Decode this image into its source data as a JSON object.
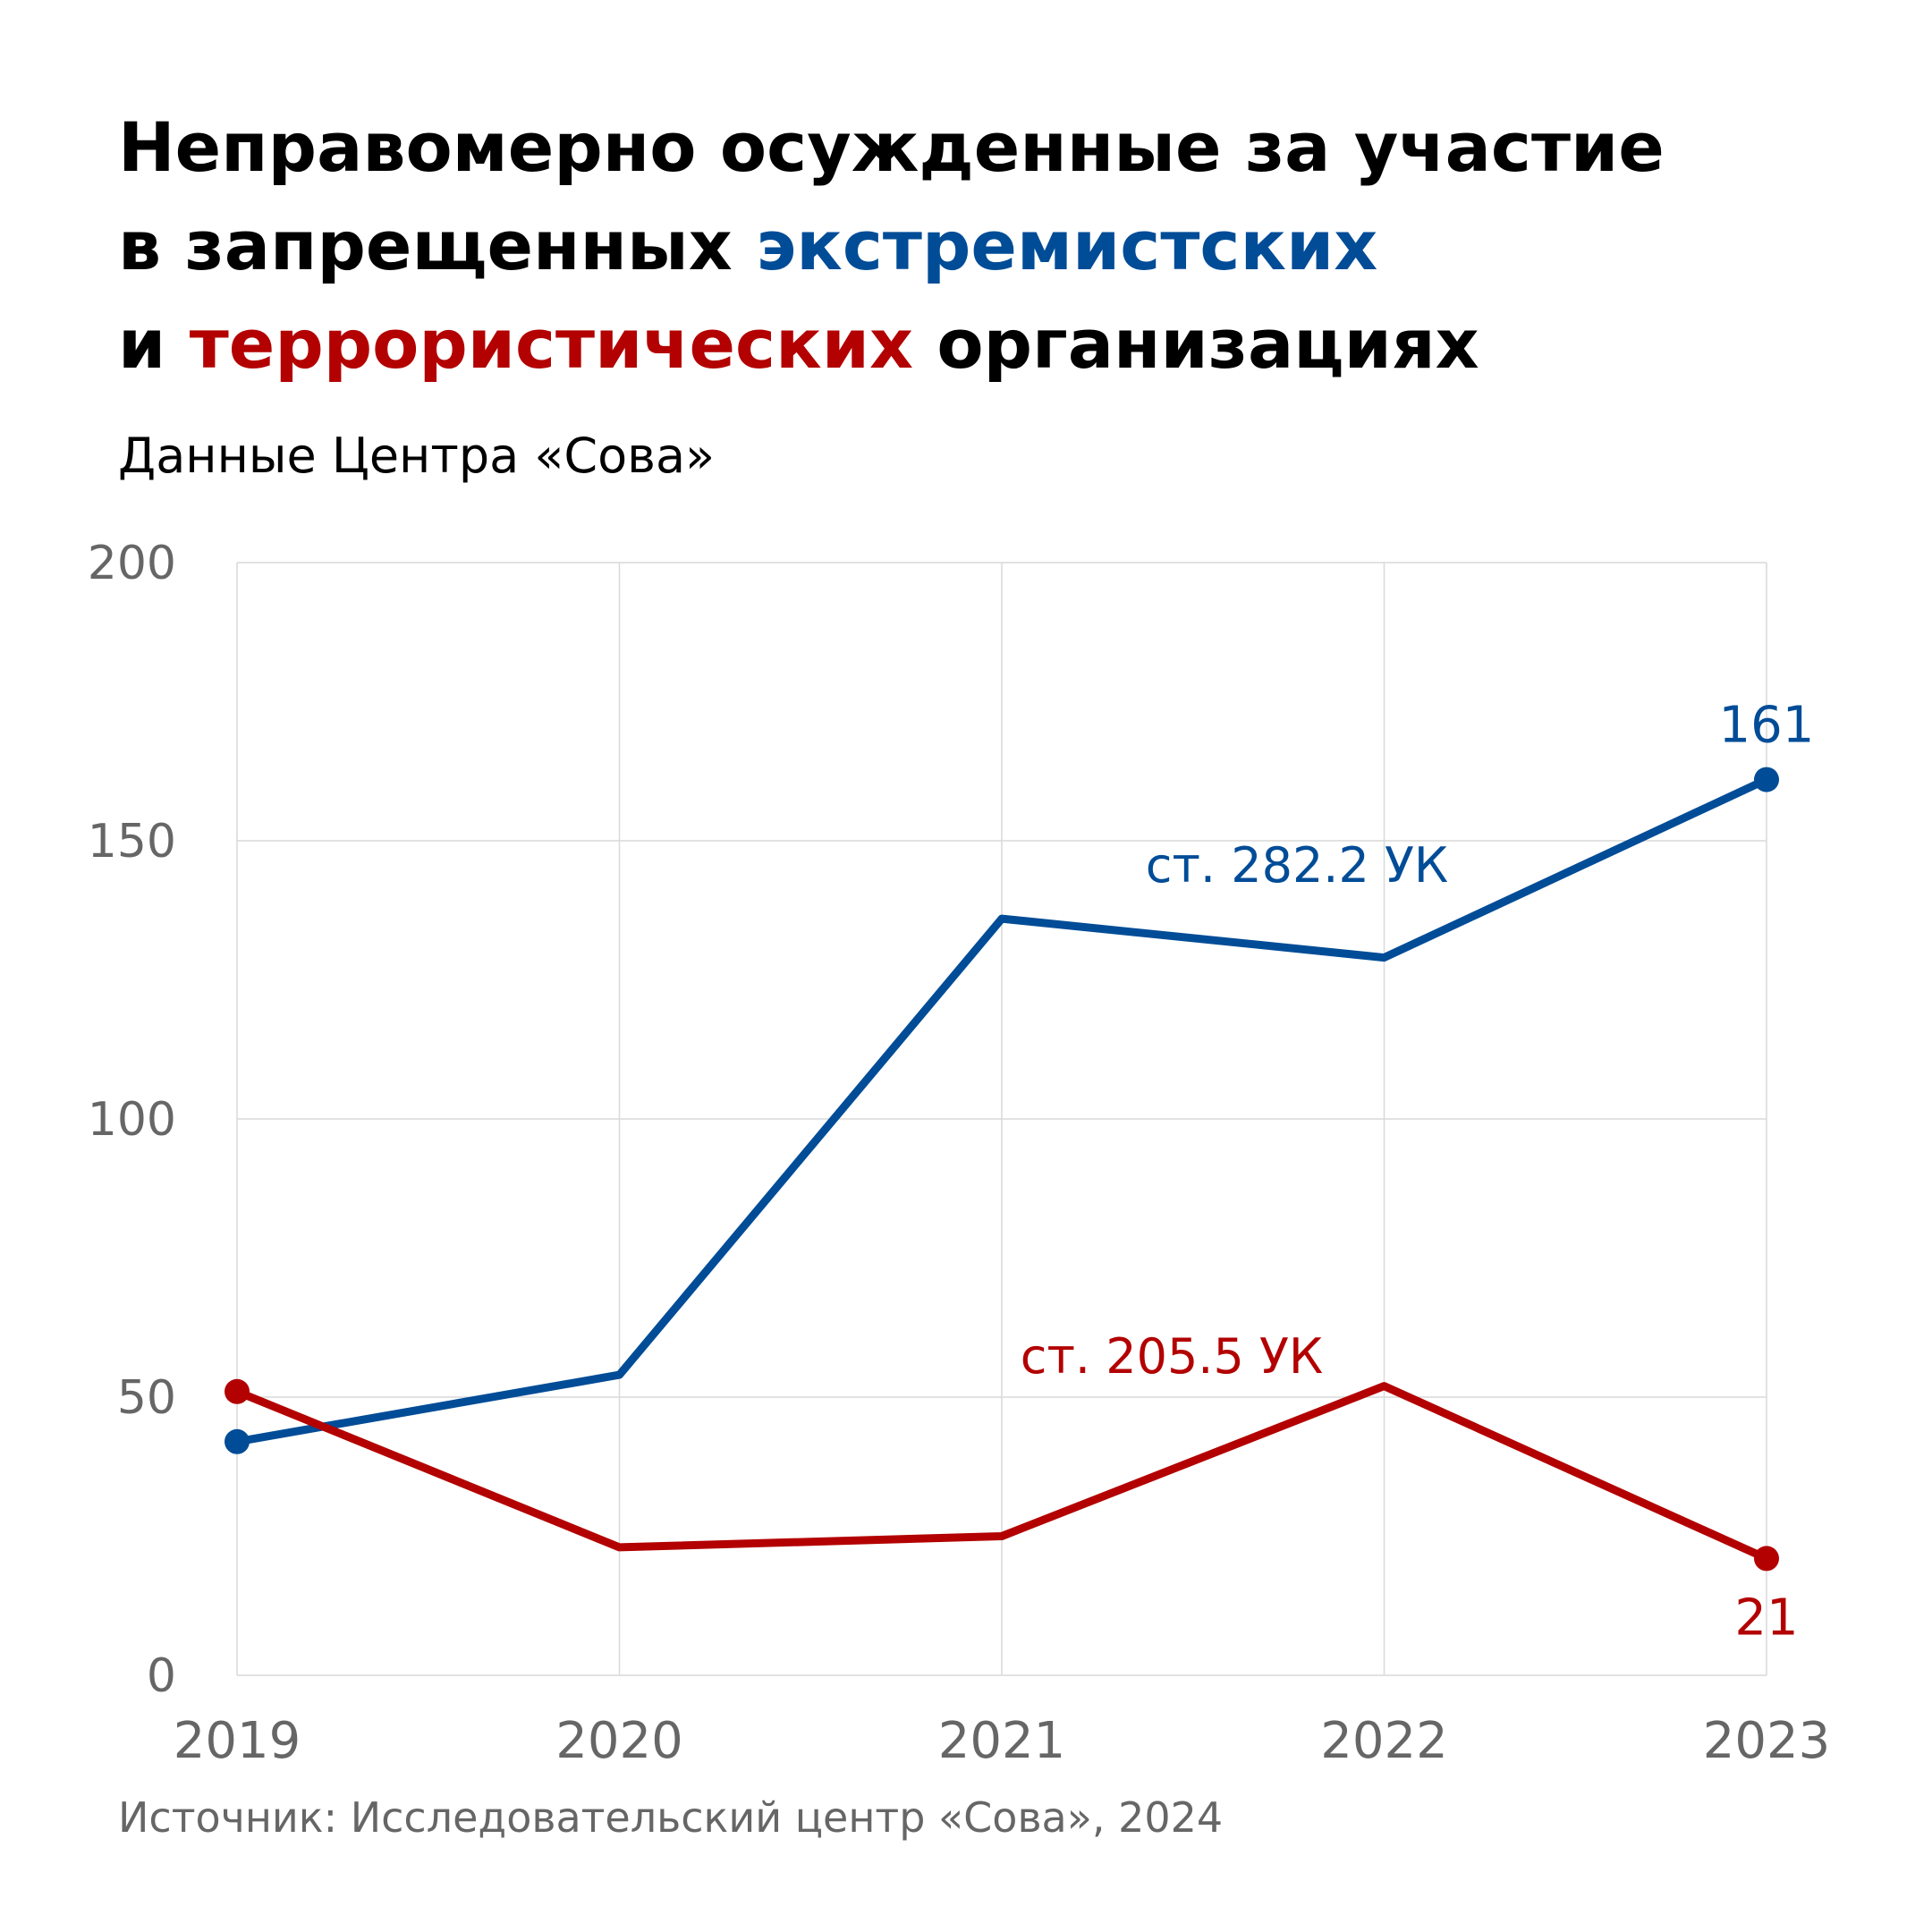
{
  "title": {
    "line1": "Неправомерно осужденные за участие",
    "line2_prefix": "в запрещенных ",
    "line2_highlight": "экстремистских",
    "line3_prefix": "и ",
    "line3_highlight": "террористических",
    "line3_suffix": " организациях"
  },
  "subtitle": "Данные Центра «Сова»",
  "source": "Источник: Исследовательский центр «Сова», 2024",
  "colors": {
    "extremist": "#004C97",
    "terrorist": "#B30000",
    "grid": "#D9D9D9",
    "tick_text": "#666666"
  },
  "chart_data": {
    "type": "line",
    "x": [
      "2019",
      "2020",
      "2021",
      "2022",
      "2023"
    ],
    "ylim": [
      0,
      200
    ],
    "yticks": [
      0,
      50,
      100,
      150,
      200
    ],
    "grid": true,
    "series": [
      {
        "name": "ст. 282.2 УК",
        "color": "#004C97",
        "values": [
          42,
          54,
          136,
          129,
          161
        ],
        "end_label": "161"
      },
      {
        "name": "ст. 205.5 УК",
        "color": "#B30000",
        "values": [
          51,
          23,
          25,
          52,
          21
        ],
        "end_label": "21"
      }
    ]
  }
}
